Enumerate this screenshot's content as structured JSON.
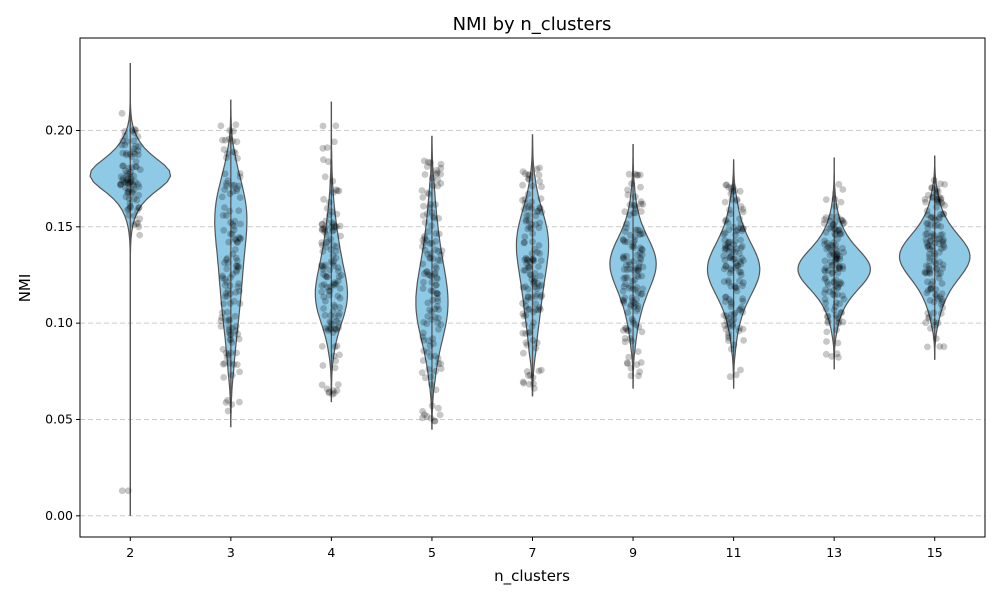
{
  "chart_data": {
    "type": "violin",
    "title": "NMI by n_clusters",
    "xlabel": "n_clusters",
    "ylabel": "NMI",
    "ylim": [
      -0.011,
      0.248
    ],
    "yticks": [
      0.0,
      0.05,
      0.1,
      0.15,
      0.2
    ],
    "ytick_labels": [
      "0.00",
      "0.05",
      "0.10",
      "0.15",
      "0.20"
    ],
    "grid": {
      "axis": "y",
      "style": "dashed"
    },
    "colors": {
      "violin_fill": "#8ecae6",
      "violin_edge": "#555555",
      "points": "#000000",
      "grid": "#cccccc"
    },
    "categories": [
      "2",
      "3",
      "4",
      "5",
      "7",
      "9",
      "11",
      "13",
      "15"
    ],
    "violins": [
      {
        "category": "2",
        "min": 0.0,
        "max": 0.235,
        "median": 0.177,
        "q1": 0.17,
        "q3": 0.191,
        "mode": 0.177,
        "half_width_max": 0.4
      },
      {
        "category": "3",
        "min": 0.046,
        "max": 0.216,
        "median": 0.128,
        "q1": 0.105,
        "q3": 0.158,
        "mode": 0.16,
        "half_width_max": 0.16
      },
      {
        "category": "4",
        "min": 0.059,
        "max": 0.215,
        "median": 0.125,
        "q1": 0.106,
        "q3": 0.145,
        "mode": 0.112,
        "half_width_max": 0.16
      },
      {
        "category": "5",
        "min": 0.045,
        "max": 0.197,
        "median": 0.12,
        "q1": 0.098,
        "q3": 0.15,
        "mode": 0.108,
        "half_width_max": 0.16
      },
      {
        "category": "7",
        "min": 0.062,
        "max": 0.198,
        "median": 0.125,
        "q1": 0.105,
        "q3": 0.15,
        "mode": 0.145,
        "half_width_max": 0.16
      },
      {
        "category": "9",
        "min": 0.066,
        "max": 0.193,
        "median": 0.127,
        "q1": 0.11,
        "q3": 0.145,
        "mode": 0.132,
        "half_width_max": 0.23
      },
      {
        "category": "11",
        "min": 0.066,
        "max": 0.185,
        "median": 0.128,
        "q1": 0.11,
        "q3": 0.145,
        "mode": 0.128,
        "half_width_max": 0.26
      },
      {
        "category": "13",
        "min": 0.076,
        "max": 0.186,
        "median": 0.128,
        "q1": 0.115,
        "q3": 0.142,
        "mode": 0.128,
        "half_width_max": 0.36
      },
      {
        "category": "15",
        "min": 0.081,
        "max": 0.187,
        "median": 0.133,
        "q1": 0.118,
        "q3": 0.148,
        "mode": 0.135,
        "half_width_max": 0.35
      }
    ]
  }
}
